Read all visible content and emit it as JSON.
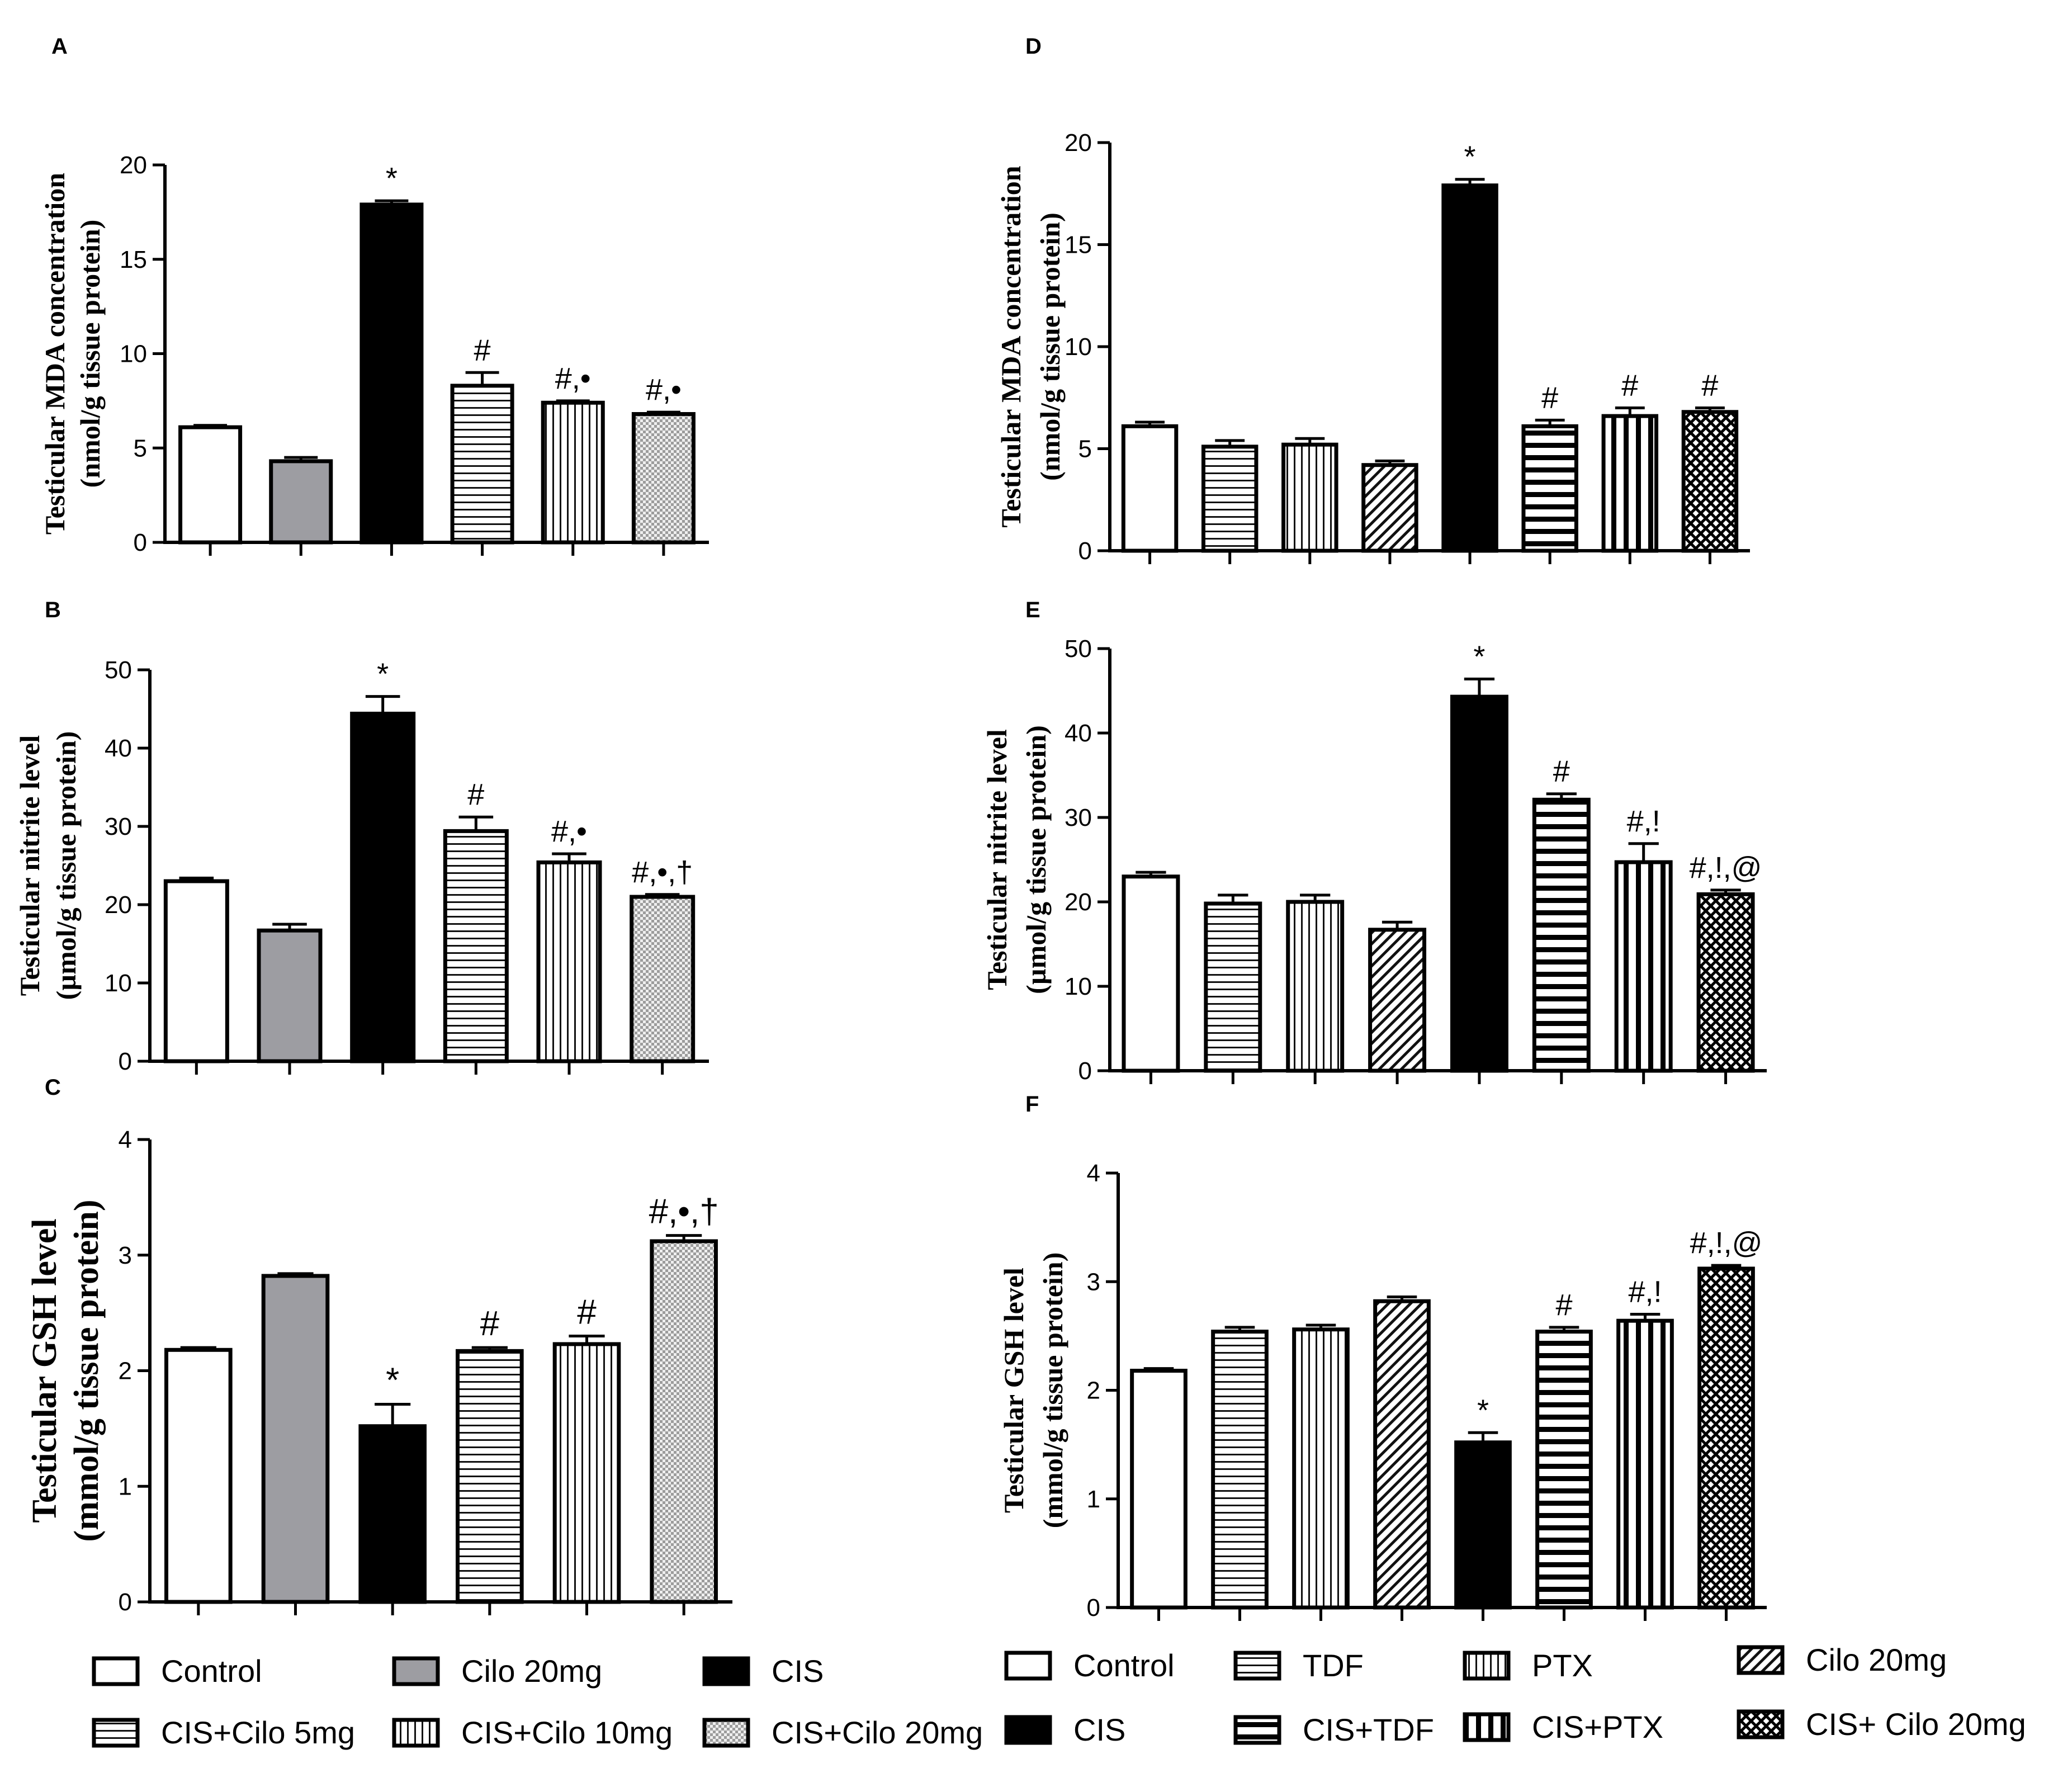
{
  "chart_data": [
    {
      "panel": "A",
      "type": "bar",
      "ylabel": [
        "Testicular MDA concentration",
        "(nmol/g tissue protein)"
      ],
      "ylim": [
        0,
        20
      ],
      "yticks": [
        0,
        5,
        10,
        15,
        20
      ],
      "groups": [
        "Control",
        "Cilo 20mg",
        "CIS",
        "CIS+Cilo 5mg",
        "CIS+Cilo 10mg",
        "CIS+Cilo 20mg"
      ],
      "values": [
        6.1,
        4.3,
        17.9,
        8.3,
        7.4,
        6.8
      ],
      "errors": [
        0.1,
        0.2,
        0.2,
        0.7,
        0.1,
        0.1
      ],
      "annotations": [
        "",
        "",
        "*",
        "#",
        "#,•",
        "#,•"
      ]
    },
    {
      "panel": "B",
      "type": "bar",
      "ylabel": [
        "Testicular nitrite level",
        "(µmol/g tissue protein)"
      ],
      "ylim": [
        0,
        50
      ],
      "yticks": [
        0,
        10,
        20,
        30,
        40,
        50
      ],
      "groups": [
        "Control",
        "Cilo 20mg",
        "CIS",
        "CIS+Cilo 5mg",
        "CIS+Cilo 10mg",
        "CIS+Cilo 20mg"
      ],
      "values": [
        23.0,
        16.7,
        44.4,
        29.4,
        25.4,
        21.0
      ],
      "errors": [
        0.4,
        0.8,
        2.2,
        1.8,
        1.1,
        0.3
      ],
      "annotations": [
        "",
        "",
        "*",
        "#",
        "#,•",
        "#,•,†"
      ]
    },
    {
      "panel": "C",
      "type": "bar",
      "ylabel": [
        "Testicular GSH level",
        "(mmol/g tissue protein)"
      ],
      "ylim": [
        0,
        4
      ],
      "yticks": [
        0,
        1,
        2,
        3,
        4
      ],
      "groups": [
        "Control",
        "Cilo 20mg",
        "CIS",
        "CIS+Cilo 5mg",
        "CIS+Cilo 10mg",
        "CIS+Cilo 20mg"
      ],
      "values": [
        2.18,
        2.82,
        1.52,
        2.17,
        2.23,
        3.12
      ],
      "errors": [
        0.02,
        0.02,
        0.19,
        0.03,
        0.07,
        0.05
      ],
      "annotations": [
        "",
        "",
        "*",
        "#",
        "#",
        "#,•,†"
      ]
    },
    {
      "panel": "D",
      "type": "bar",
      "ylabel": [
        "Testicular MDA concentration",
        "(nmol/g tissue protein)"
      ],
      "ylim": [
        0,
        20
      ],
      "yticks": [
        0,
        5,
        10,
        15,
        20
      ],
      "groups": [
        "Control",
        "TDF",
        "PTX",
        "Cilo 20mg",
        "CIS",
        "CIS+TDF",
        "CIS+PTX",
        "CIS+ Cilo 20mg"
      ],
      "values": [
        6.1,
        5.1,
        5.2,
        4.2,
        17.9,
        6.1,
        6.6,
        6.8
      ],
      "errors": [
        0.2,
        0.3,
        0.3,
        0.2,
        0.3,
        0.3,
        0.4,
        0.2
      ],
      "annotations": [
        "",
        "",
        "",
        "",
        "*",
        "#",
        "#",
        "#"
      ]
    },
    {
      "panel": "E",
      "type": "bar",
      "ylabel": [
        "Testicular nitrite level",
        "(µmol/g tissue protein)"
      ],
      "ylim": [
        0,
        50
      ],
      "yticks": [
        0,
        10,
        20,
        30,
        40,
        50
      ],
      "groups": [
        "Control",
        "TDF",
        "PTX",
        "Cilo 20mg",
        "CIS",
        "CIS+TDF",
        "CIS+PTX",
        "CIS+ Cilo 20mg"
      ],
      "values": [
        23.0,
        19.8,
        20.0,
        16.7,
        44.3,
        32.1,
        24.7,
        20.9
      ],
      "errors": [
        0.5,
        1.0,
        0.8,
        0.9,
        2.1,
        0.7,
        2.2,
        0.5
      ],
      "annotations": [
        "",
        "",
        "",
        "",
        "*",
        "#",
        "#,!",
        "#,!,@"
      ]
    },
    {
      "panel": "F",
      "type": "bar",
      "ylabel": [
        "Testicular GSH level",
        "(mmol/g tissue protein)"
      ],
      "ylim": [
        0,
        4
      ],
      "yticks": [
        0,
        1,
        2,
        3,
        4
      ],
      "groups": [
        "Control",
        "TDF",
        "PTX",
        "Cilo 20mg",
        "CIS",
        "CIS+TDF",
        "CIS+PTX",
        "CIS+ Cilo 20mg"
      ],
      "values": [
        2.18,
        2.54,
        2.56,
        2.82,
        1.52,
        2.54,
        2.64,
        3.12
      ],
      "errors": [
        0.02,
        0.04,
        0.04,
        0.04,
        0.09,
        0.04,
        0.06,
        0.03
      ],
      "annotations": [
        "",
        "",
        "",
        "",
        "*",
        "#",
        "#,!",
        "#,!,@"
      ]
    }
  ],
  "legend_left": {
    "items": [
      {
        "label": "Control",
        "fill": "white"
      },
      {
        "label": "Cilo 20mg",
        "fill": "gray"
      },
      {
        "label": "CIS",
        "fill": "black"
      },
      {
        "label": "CIS+Cilo 5mg",
        "fill": "hlines"
      },
      {
        "label": "CIS+Cilo 10mg",
        "fill": "vlines"
      },
      {
        "label": "CIS+Cilo 20mg",
        "fill": "checker"
      }
    ]
  },
  "legend_right": {
    "items": [
      {
        "label": "Control",
        "fill": "white"
      },
      {
        "label": "TDF",
        "fill": "hlines"
      },
      {
        "label": "PTX",
        "fill": "vlines"
      },
      {
        "label": "Cilo 20mg",
        "fill": "diag"
      },
      {
        "label": "CIS",
        "fill": "black"
      },
      {
        "label": "CIS+TDF",
        "fill": "thickh"
      },
      {
        "label": "CIS+PTX",
        "fill": "thickv"
      },
      {
        "label": "CIS+ Cilo 20mg",
        "fill": "cross"
      }
    ]
  },
  "colors": {
    "gray_fill": "#9d9da2",
    "axis": "#000000"
  }
}
